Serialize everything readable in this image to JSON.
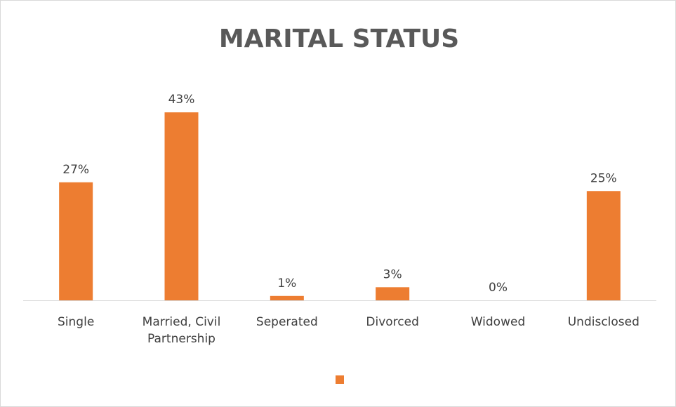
{
  "chart_data": {
    "type": "bar",
    "title": "MARITAL STATUS",
    "categories": [
      "Single",
      "Married, Civil Partnership",
      "Seperated",
      "Divorced",
      "Widowed",
      "Undisclosed"
    ],
    "values": [
      27,
      43,
      1,
      3,
      0,
      25
    ],
    "value_labels": [
      "27%",
      "43%",
      "1%",
      "3%",
      "0%",
      "25%"
    ],
    "color": "#ed7d31"
  }
}
